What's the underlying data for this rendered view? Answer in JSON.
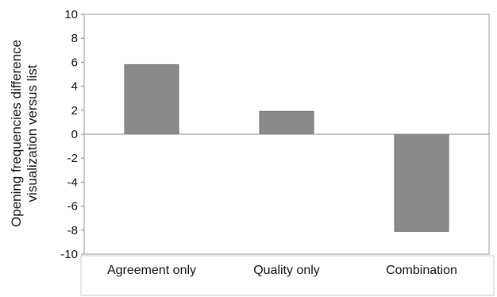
{
  "chart_data": {
    "type": "bar",
    "categories": [
      "Agreement only",
      "Quality only",
      "Combination"
    ],
    "values": [
      5.8,
      1.9,
      -8.1
    ],
    "title": "",
    "xlabel": "",
    "ylabel_lines": [
      "Opening frequencies difference",
      "visualization versus list"
    ],
    "ylim": [
      -10,
      10
    ],
    "yticks": [
      "10",
      "8",
      "6",
      "4",
      "2",
      "0",
      "-2",
      "-4",
      "-6",
      "-8",
      "-10"
    ],
    "grid": false,
    "legend": "none",
    "colors": {
      "bar": "#8a8a8a",
      "bar_edge": "#6e6e6e",
      "axis": "#888888",
      "label_box_edge": "#cccccc"
    }
  }
}
